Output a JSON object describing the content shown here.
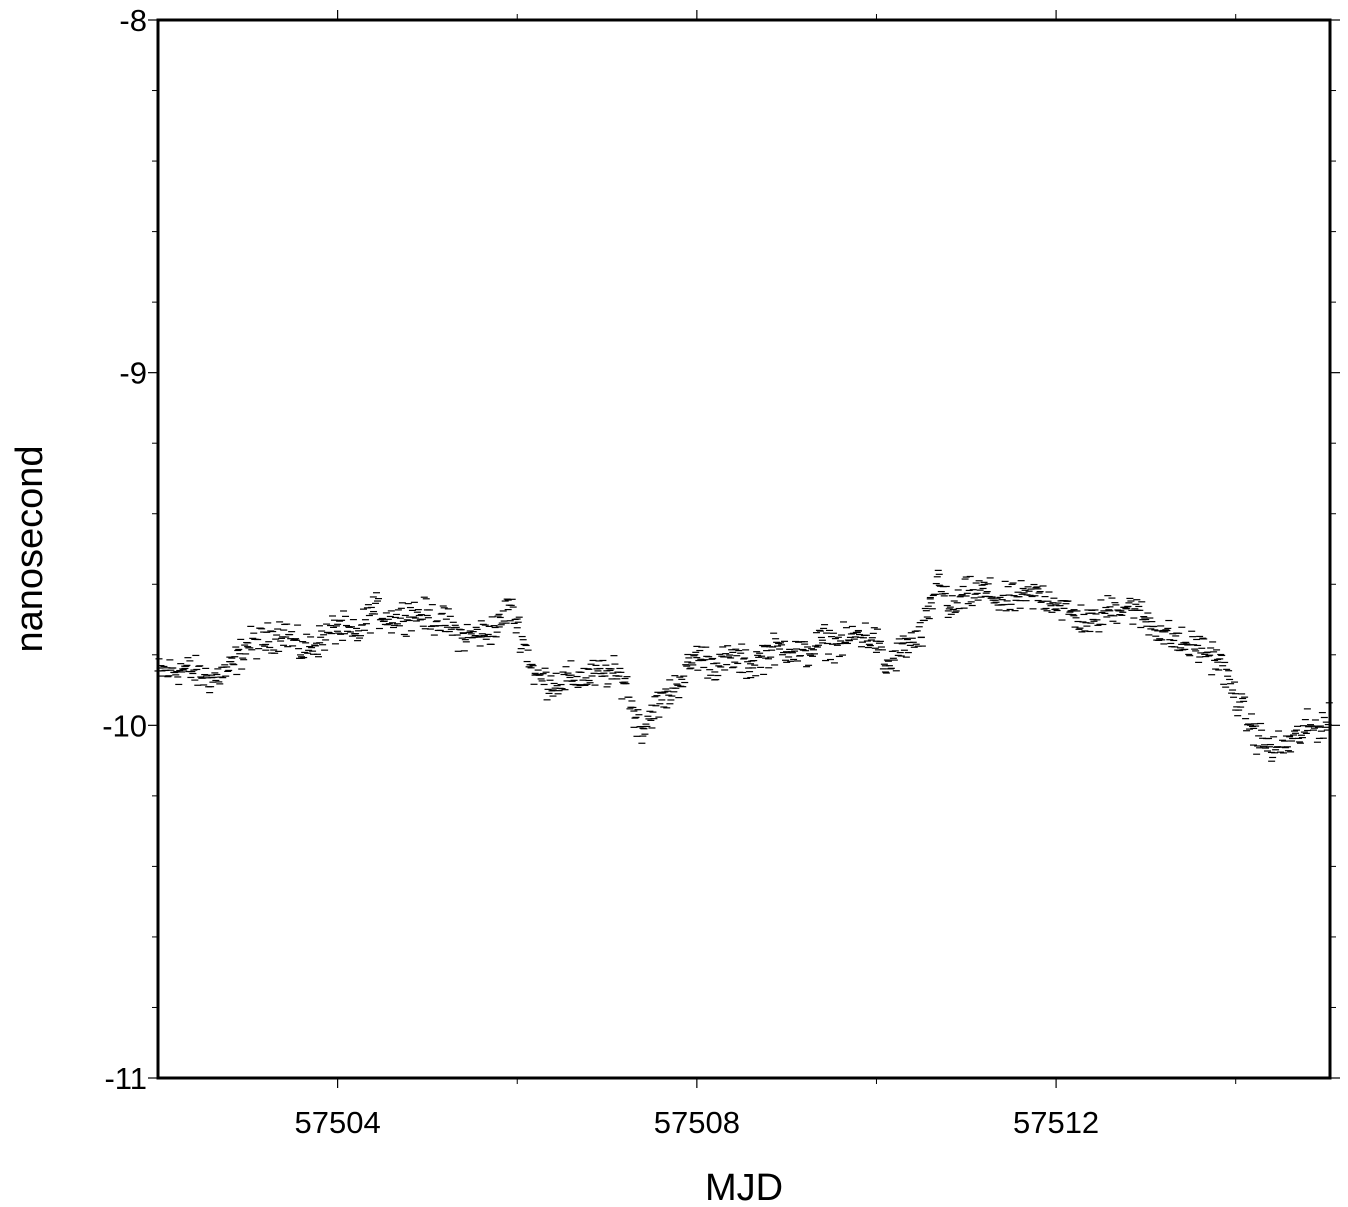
{
  "chart_data": {
    "type": "scatter",
    "title": "",
    "xlabel": "MJD",
    "ylabel": "nanosecond",
    "xlim": [
      57502.0,
      57515.05
    ],
    "ylim": [
      -11,
      -8
    ],
    "xticks": [
      {
        "value": 57504,
        "label": "57504"
      },
      {
        "value": 57508,
        "label": "57508"
      },
      {
        "value": 57512,
        "label": "57512"
      }
    ],
    "x_minor_ticks": [
      57506,
      57510,
      57514
    ],
    "yticks": [
      {
        "value": -8,
        "label": "-8"
      },
      {
        "value": -9,
        "label": "-9"
      },
      {
        "value": -10,
        "label": "-10"
      },
      {
        "value": -11,
        "label": "-11"
      }
    ],
    "y_minor_step": 0.2,
    "grid": false,
    "marker": "dash",
    "color": "#000000",
    "series": [
      {
        "points_sampled": [
          [
            57502.0,
            -9.85
          ],
          [
            57502.3,
            -9.84
          ],
          [
            57502.6,
            -9.87
          ],
          [
            57502.8,
            -9.84
          ],
          [
            57503.0,
            -9.77
          ],
          [
            57503.2,
            -9.76
          ],
          [
            57503.4,
            -9.73
          ],
          [
            57503.6,
            -9.79
          ],
          [
            57503.8,
            -9.76
          ],
          [
            57504.0,
            -9.72
          ],
          [
            57504.2,
            -9.75
          ],
          [
            57504.4,
            -9.67
          ],
          [
            57504.6,
            -9.7
          ],
          [
            57504.8,
            -9.68
          ],
          [
            57505.0,
            -9.69
          ],
          [
            57505.2,
            -9.71
          ],
          [
            57505.4,
            -9.75
          ],
          [
            57505.6,
            -9.74
          ],
          [
            57505.8,
            -9.72
          ],
          [
            57505.9,
            -9.66
          ],
          [
            57506.0,
            -9.71
          ],
          [
            57506.2,
            -9.86
          ],
          [
            57506.4,
            -9.88
          ],
          [
            57506.6,
            -9.87
          ],
          [
            57506.8,
            -9.86
          ],
          [
            57507.0,
            -9.85
          ],
          [
            57507.2,
            -9.87
          ],
          [
            57507.3,
            -9.97
          ],
          [
            57507.4,
            -10.01
          ],
          [
            57507.5,
            -9.96
          ],
          [
            57507.7,
            -9.91
          ],
          [
            57507.9,
            -9.84
          ],
          [
            57508.0,
            -9.8
          ],
          [
            57508.2,
            -9.83
          ],
          [
            57508.4,
            -9.81
          ],
          [
            57508.6,
            -9.83
          ],
          [
            57508.8,
            -9.79
          ],
          [
            57509.0,
            -9.78
          ],
          [
            57509.2,
            -9.8
          ],
          [
            57509.4,
            -9.76
          ],
          [
            57509.6,
            -9.77
          ],
          [
            57509.8,
            -9.74
          ],
          [
            57510.0,
            -9.76
          ],
          [
            57510.1,
            -9.84
          ],
          [
            57510.3,
            -9.78
          ],
          [
            57510.5,
            -9.75
          ],
          [
            57510.6,
            -9.67
          ],
          [
            57510.7,
            -9.57
          ],
          [
            57510.8,
            -9.68
          ],
          [
            57511.0,
            -9.63
          ],
          [
            57511.2,
            -9.62
          ],
          [
            57511.4,
            -9.65
          ],
          [
            57511.6,
            -9.64
          ],
          [
            57511.8,
            -9.63
          ],
          [
            57512.0,
            -9.65
          ],
          [
            57512.2,
            -9.69
          ],
          [
            57512.4,
            -9.71
          ],
          [
            57512.6,
            -9.67
          ],
          [
            57512.8,
            -9.66
          ],
          [
            57513.0,
            -9.7
          ],
          [
            57513.2,
            -9.74
          ],
          [
            57513.4,
            -9.77
          ],
          [
            57513.6,
            -9.78
          ],
          [
            57513.8,
            -9.81
          ],
          [
            57514.0,
            -9.92
          ],
          [
            57514.2,
            -10.02
          ],
          [
            57514.4,
            -10.07
          ],
          [
            57514.6,
            -10.05
          ],
          [
            57514.8,
            -10.01
          ],
          [
            57515.05,
            -9.99
          ]
        ]
      }
    ]
  }
}
